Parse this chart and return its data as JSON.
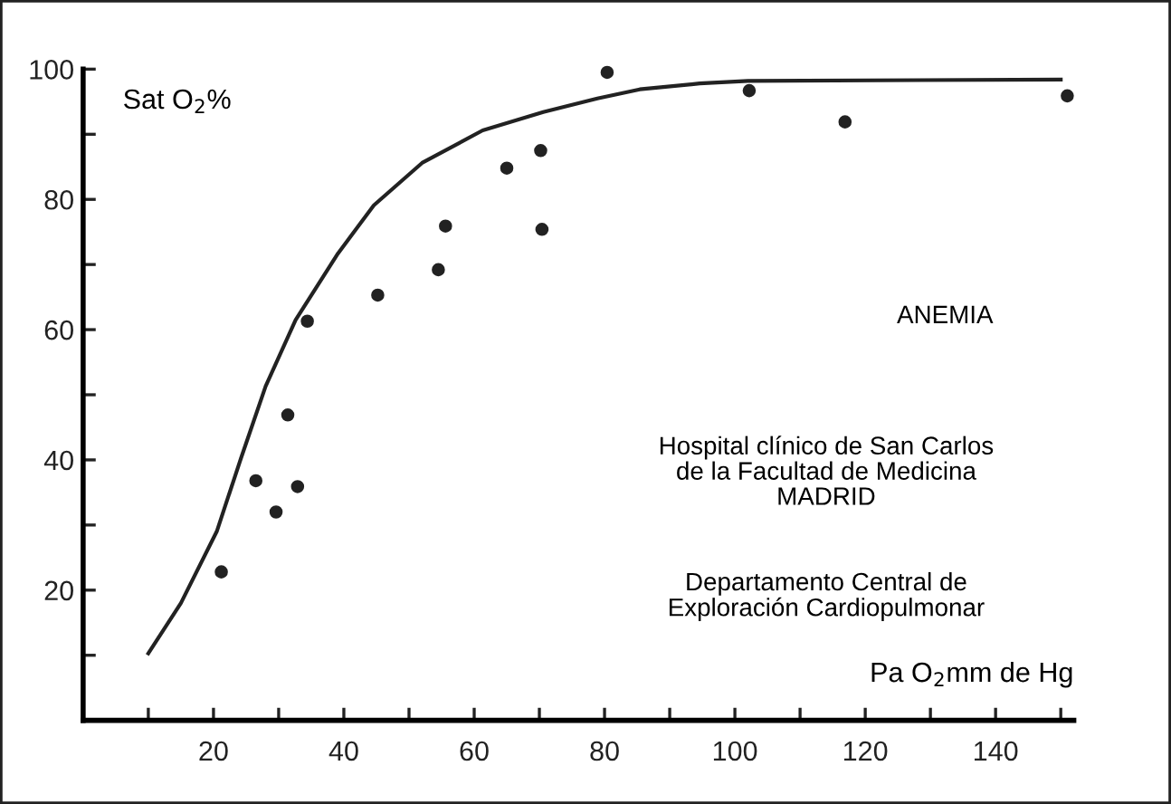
{
  "chart_data": {
    "type": "scatter",
    "ylabel": "Sat O$_{2}$%",
    "xlabel": "Pa O$_{2}$mm de Hg",
    "annotations": [
      "ANEMIA",
      "Hospital clínico de San Carlos\nde la Facultad de Medicina\nMADRID",
      "Departamento Central de\nExploración Cardiopulmonar"
    ],
    "series": [
      {
        "marker": "circle",
        "color": "#222222",
        "x": [
          21.2,
          26.5,
          29.6,
          31.4,
          32.9,
          34.4,
          45.2,
          54.5,
          55.6,
          65.0,
          70.2,
          70.4,
          80.4,
          102.2,
          116.9,
          151
        ],
        "values": [
          22.8,
          36.8,
          32.0,
          46.9,
          35.9,
          61.3,
          65.3,
          69.2,
          75.9,
          84.8,
          87.5,
          75.4,
          99.5,
          96.7,
          91.9,
          95.9
        ]
      },
      {
        "type": "line",
        "marker": "none",
        "line_style": "solid",
        "color": "#222222",
        "x": [
          10,
          15,
          20.5,
          24.2,
          28,
          32.6,
          39.1,
          44.6,
          52,
          61.3,
          70.6,
          78.9,
          85.4,
          94.6,
          102,
          150
        ],
        "values": [
          10.3,
          18,
          29,
          40.2,
          51.3,
          61.5,
          71.7,
          79.1,
          85.6,
          90.6,
          93.4,
          95.5,
          96.9,
          97.8,
          98.2,
          98.4
        ]
      }
    ],
    "grid": false,
    "legend": false,
    "xlim": [
      0,
      152
    ],
    "ylim": [
      0,
      100
    ],
    "xticks": [
      {
        "value": 10,
        "label": null
      },
      20,
      {
        "value": 30,
        "label": null
      },
      40,
      {
        "value": 50,
        "label": null
      },
      60,
      {
        "value": 70,
        "label": null
      },
      80,
      {
        "value": 90,
        "label": null
      },
      100,
      {
        "value": 110,
        "label": null
      },
      120,
      {
        "value": 130,
        "label": null
      },
      140,
      {
        "value": 150,
        "label": null
      }
    ],
    "yticks": [
      {
        "value": 10,
        "label": null
      },
      20,
      {
        "value": 30,
        "label": null
      },
      40,
      {
        "value": 50,
        "label": null
      },
      60,
      {
        "value": 70,
        "label": null
      },
      80,
      {
        "value": 90,
        "label": null
      },
      100
    ]
  }
}
